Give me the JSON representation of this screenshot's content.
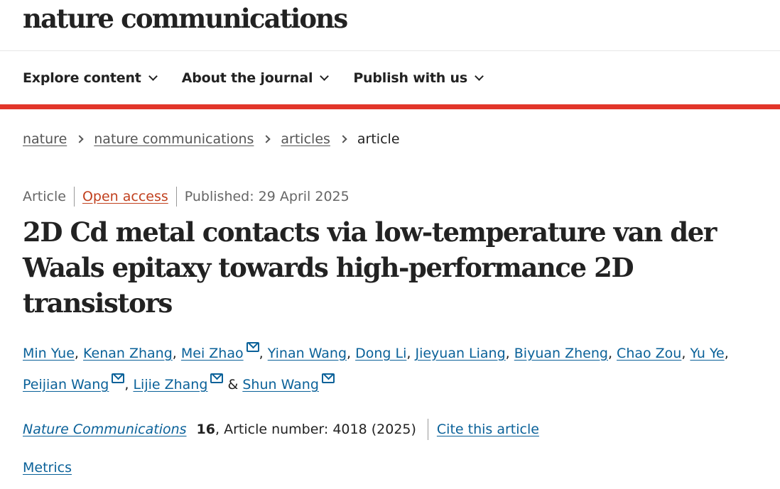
{
  "header": {
    "logo": "nature communications"
  },
  "nav": {
    "items": [
      {
        "label": "Explore content"
      },
      {
        "label": "About the journal"
      },
      {
        "label": "Publish with us"
      }
    ]
  },
  "accent_color": "#e2352a",
  "link_color": "#0a6199",
  "breadcrumb": [
    "nature",
    "nature communications",
    "articles",
    "article"
  ],
  "meta": {
    "type": "Article",
    "access": "Open access",
    "published": "Published: 29 April 2025"
  },
  "title": "2D Cd metal contacts via low-temperature van der Waals epitaxy towards high-performance 2D transistors",
  "authors": [
    {
      "name": "Min Yue"
    },
    {
      "name": "Kenan Zhang"
    },
    {
      "name": "Mei Zhao",
      "email": true
    },
    {
      "name": "Yinan Wang"
    },
    {
      "name": "Dong Li"
    },
    {
      "name": "Jieyuan Liang"
    },
    {
      "name": "Biyuan Zheng"
    },
    {
      "name": "Chao Zou"
    },
    {
      "name": "Yu Ye"
    },
    {
      "name": "Peijian Wang",
      "email": true
    },
    {
      "name": "Lijie Zhang",
      "email": true
    },
    {
      "name": "Shun Wang",
      "email": true
    }
  ],
  "authors_joiner": "&",
  "citation": {
    "journal": "Nature Communications",
    "volume": "16",
    "details": ", Article number: 4018 (2025)",
    "cite_label": "Cite this article"
  },
  "metrics_label": "Metrics"
}
